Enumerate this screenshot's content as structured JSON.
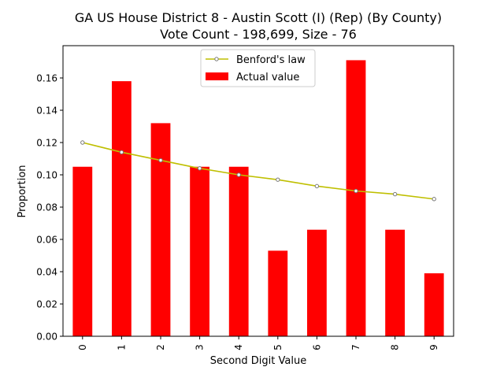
{
  "chart_data": {
    "type": "bar",
    "title_line1": "GA US House District 8 - Austin Scott (I) (Rep) (By County)",
    "title_line2": "Vote Count - 198,699, Size - 76",
    "xlabel": "Second Digit Value",
    "ylabel": "Proportion",
    "categories": [
      "0",
      "1",
      "2",
      "3",
      "4",
      "5",
      "6",
      "7",
      "8",
      "9"
    ],
    "ylim": [
      0,
      0.18
    ],
    "yticks": [
      "0.00",
      "0.02",
      "0.04",
      "0.06",
      "0.08",
      "0.10",
      "0.12",
      "0.14",
      "0.16"
    ],
    "grid": false,
    "legend_position": "top-center",
    "series": [
      {
        "name": "Actual value",
        "kind": "bar",
        "color": "#ff0000",
        "values": [
          0.105,
          0.158,
          0.132,
          0.105,
          0.105,
          0.053,
          0.066,
          0.171,
          0.066,
          0.039
        ]
      },
      {
        "name": "Benford's law",
        "kind": "line",
        "color": "#bfbf00",
        "values": [
          0.12,
          0.114,
          0.109,
          0.104,
          0.1,
          0.097,
          0.093,
          0.09,
          0.088,
          0.085
        ]
      }
    ]
  }
}
